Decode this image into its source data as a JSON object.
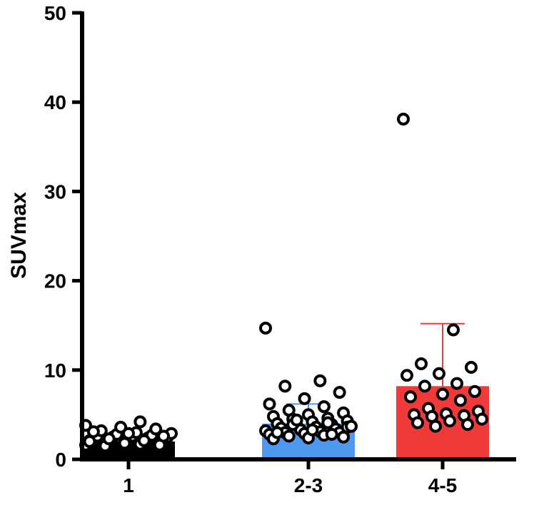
{
  "chart_data": {
    "type": "bar",
    "title": "",
    "xlabel": "",
    "ylabel": "SUVmax",
    "ylim": [
      0,
      50
    ],
    "yticks": [
      "0",
      "10",
      "20",
      "30",
      "40",
      "50"
    ],
    "categories": [
      "1",
      "2-3",
      "4-5"
    ],
    "grid": false,
    "legend": "none",
    "bar_colors": [
      "#000000",
      "#4f98f0",
      "#f03a3a"
    ],
    "series": [
      {
        "values": [
          2.0,
          4.0,
          8.2
        ],
        "error_upper": [
          2.6,
          6.2,
          15.2
        ],
        "points": [
          [
            1.6,
            1.7,
            1.8,
            1.9,
            2.0,
            2.1,
            2.2,
            2.2,
            2.3,
            2.3,
            2.4,
            2.4,
            2.5,
            2.5,
            2.6,
            2.6,
            2.7,
            2.8,
            2.9,
            3.0,
            3.2,
            3.4,
            3.6,
            3.8,
            4.2,
            1.5,
            1.6,
            1.8,
            2.0,
            2.1,
            2.3,
            2.6,
            2.9,
            3.1
          ],
          [
            14.7,
            8.8,
            8.2,
            7.5,
            6.8,
            6.2,
            5.9,
            5.5,
            5.2,
            5.0,
            4.8,
            4.6,
            4.5,
            4.3,
            4.2,
            4.0,
            3.9,
            3.8,
            3.7,
            3.6,
            3.5,
            3.4,
            3.3,
            3.2,
            3.1,
            3.0,
            3.0,
            2.9,
            2.8,
            2.7,
            2.6,
            2.5,
            2.4,
            2.3,
            4.1,
            3.9,
            3.6,
            3.3,
            3.0,
            2.8,
            4.4,
            3.7
          ],
          [
            38.1,
            14.5,
            10.7,
            10.3,
            9.6,
            9.4,
            8.5,
            8.2,
            7.6,
            7.3,
            7.0,
            6.6,
            5.7,
            5.4,
            5.1,
            5.0,
            4.9,
            4.8,
            4.5,
            4.3,
            4.1,
            3.9,
            3.7
          ]
        ]
      }
    ]
  }
}
